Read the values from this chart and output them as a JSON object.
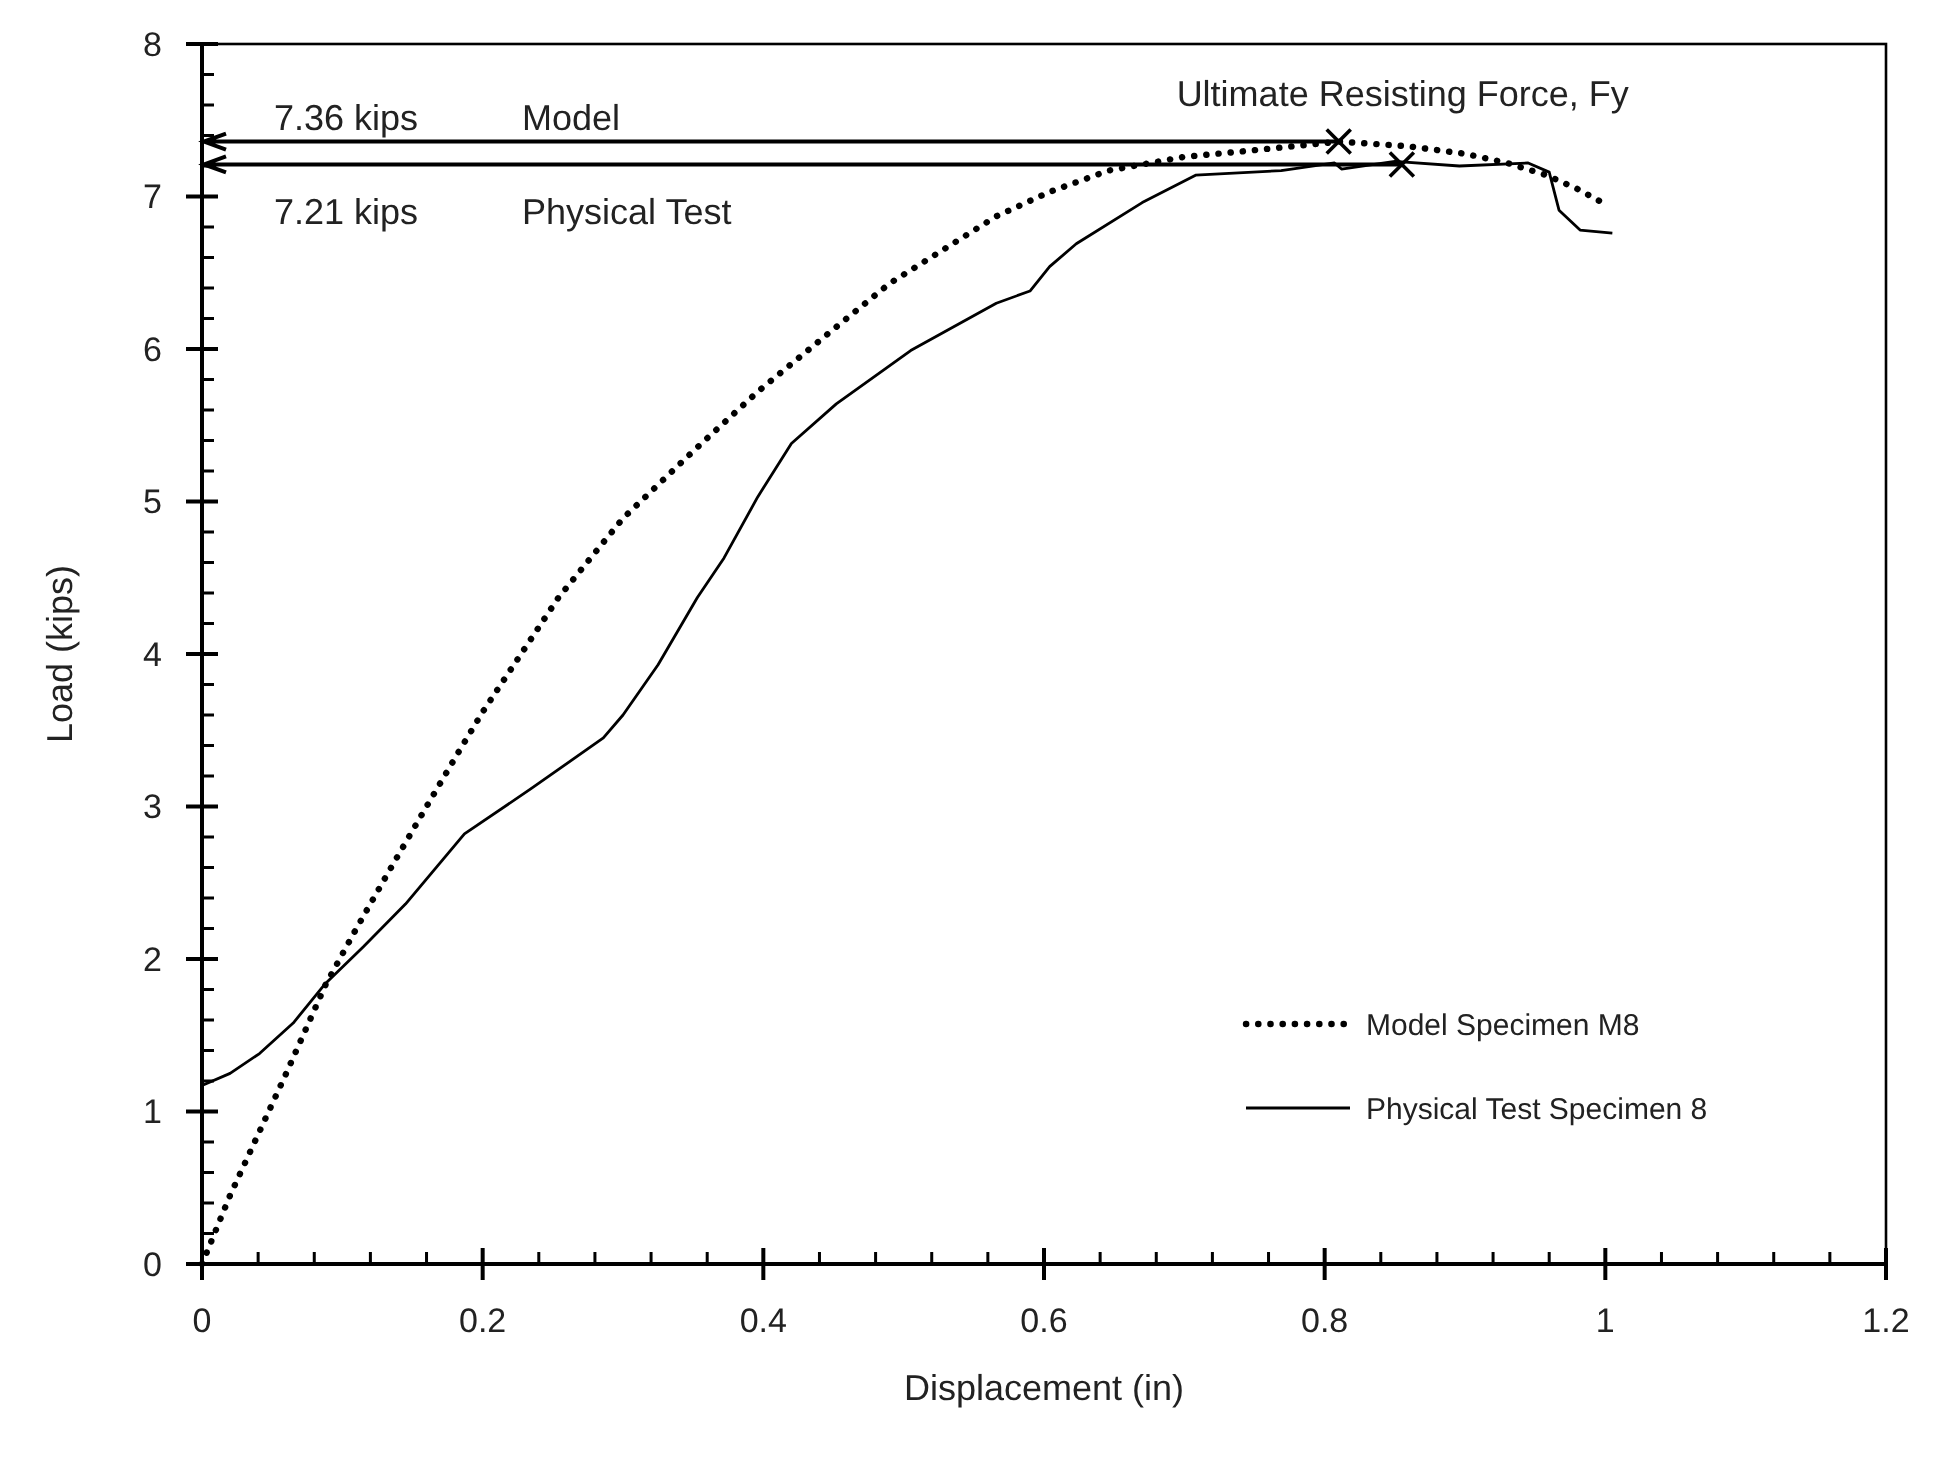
{
  "chart_data": {
    "type": "line",
    "xlabel": "Displacement (in)",
    "ylabel": "Load (kips)",
    "xlim": [
      0,
      1.2
    ],
    "ylim": [
      0,
      8
    ],
    "xticks": [
      0,
      0.2,
      0.4,
      0.6,
      0.8,
      1,
      1.2
    ],
    "yticks": [
      0,
      1,
      2,
      3,
      4,
      5,
      6,
      7,
      8
    ],
    "grid": false,
    "legend": "bottom right",
    "ref_lines": [
      {
        "axis": "y",
        "value": 7.36
      },
      {
        "axis": "y",
        "value": 7.21
      }
    ],
    "series": [
      {
        "name": "Model Specimen M8",
        "color": "#000000",
        "line_style": "dotted",
        "marker": "none",
        "x": [
          0,
          0.02,
          0.04,
          0.06,
          0.088,
          0.11,
          0.136,
          0.16,
          0.183,
          0.2,
          0.254,
          0.3,
          0.35,
          0.396,
          0.45,
          0.49,
          0.566,
          0.604,
          0.646,
          0.7,
          0.746,
          0.81,
          0.859,
          0.9,
          0.93,
          0.958,
          0.98,
          1.0
        ],
        "values": [
          0,
          0.45,
          0.85,
          1.25,
          1.83,
          2.2,
          2.62,
          3.0,
          3.36,
          3.62,
          4.37,
          4.89,
          5.33,
          5.72,
          6.13,
          6.43,
          6.87,
          7.03,
          7.17,
          7.26,
          7.3,
          7.36,
          7.33,
          7.28,
          7.22,
          7.14,
          7.05,
          6.95
        ]
      },
      {
        "name": "Physical Test Specimen 8",
        "color": "#000000",
        "line_style": "solid",
        "marker": "none",
        "x": [
          0,
          0.02,
          0.041,
          0.065,
          0.088,
          0.115,
          0.145,
          0.187,
          0.235,
          0.286,
          0.3,
          0.325,
          0.353,
          0.372,
          0.396,
          0.42,
          0.452,
          0.505,
          0.566,
          0.59,
          0.604,
          0.623,
          0.67,
          0.708,
          0.769,
          0.807,
          0.812,
          0.85,
          0.896,
          0.945,
          0.96,
          0.967,
          0.982,
          1.005
        ],
        "values": [
          1.17,
          1.25,
          1.38,
          1.58,
          1.84,
          2.08,
          2.36,
          2.82,
          3.12,
          3.45,
          3.6,
          3.93,
          4.37,
          4.63,
          5.03,
          5.38,
          5.64,
          5.99,
          6.3,
          6.38,
          6.54,
          6.69,
          6.96,
          7.14,
          7.17,
          7.22,
          7.18,
          7.23,
          7.2,
          7.22,
          7.16,
          6.91,
          6.78,
          6.76
        ]
      },
      {
        "type": "scatter",
        "color": "#000000",
        "marker": "cross",
        "x": [
          0.81,
          0.855
        ],
        "values": [
          7.36,
          7.21
        ]
      }
    ],
    "annotations": [
      "Ultimate Resisting Force, Fy",
      "7.36 kips",
      "Model",
      "7.21 kips",
      "Physical Test"
    ]
  }
}
